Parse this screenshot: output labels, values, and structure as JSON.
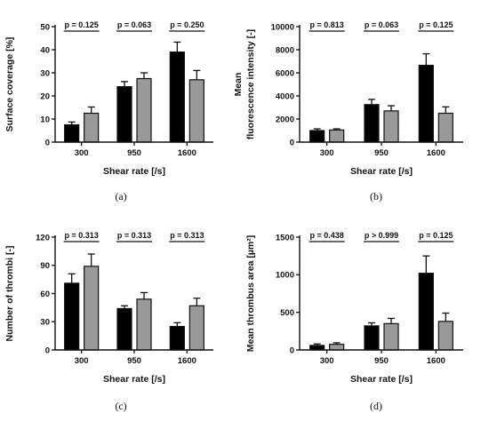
{
  "chart_data": [
    {
      "type": "bar",
      "panel": "(a)",
      "xlabel": "Shear rate [/s]",
      "ylabel": [
        "Surface coverage [%]"
      ],
      "categories": [
        "300",
        "950",
        "1600"
      ],
      "ylim": [
        0,
        50
      ],
      "yticks": [
        "0",
        "10",
        "20",
        "30",
        "40",
        "50"
      ],
      "series": [
        {
          "color": "#000000",
          "values": [
            7.5,
            24,
            39
          ],
          "errors": [
            1.2,
            2.2,
            4.3
          ]
        },
        {
          "color": "#999999",
          "values": [
            12.5,
            27.5,
            27
          ],
          "errors": [
            2.7,
            2.5,
            4
          ]
        }
      ],
      "p_values": [
        "p = 0.125",
        "p = 0.063",
        "p = 0.250"
      ]
    },
    {
      "type": "bar",
      "panel": "(b)",
      "xlabel": "Shear rate [/s]",
      "ylabel": [
        "Mean",
        "fluorescence intensity [-]"
      ],
      "categories": [
        "300",
        "950",
        "1600"
      ],
      "ylim": [
        0,
        10000
      ],
      "yticks": [
        "0",
        "2000",
        "4000",
        "6000",
        "8000",
        "10000"
      ],
      "series": [
        {
          "color": "#000000",
          "values": [
            1000,
            3250,
            6650
          ],
          "errors": [
            150,
            450,
            1000
          ]
        },
        {
          "color": "#999999",
          "values": [
            1050,
            2700,
            2500
          ],
          "errors": [
            100,
            450,
            550
          ]
        }
      ],
      "p_values": [
        "p = 0.813",
        "p = 0.063",
        "p = 0.125"
      ]
    },
    {
      "type": "bar",
      "panel": "(c)",
      "xlabel": "Shear rate [/s]",
      "ylabel": [
        "Number of thrombi [-]"
      ],
      "categories": [
        "300",
        "950",
        "1600"
      ],
      "ylim": [
        0,
        120
      ],
      "yticks": [
        "0",
        "30",
        "60",
        "90",
        "120"
      ],
      "series": [
        {
          "color": "#000000",
          "values": [
            71,
            44,
            25
          ],
          "errors": [
            10,
            3,
            4
          ]
        },
        {
          "color": "#999999",
          "values": [
            89,
            54,
            47
          ],
          "errors": [
            13,
            7,
            8
          ]
        }
      ],
      "p_values": [
        "p = 0.313",
        "p = 0.313",
        "p = 0.313"
      ]
    },
    {
      "type": "bar",
      "panel": "(d)",
      "xlabel": "Shear rate [/s]",
      "ylabel": [
        "Mean thrombus area [µm²]"
      ],
      "categories": [
        "300",
        "950",
        "1600"
      ],
      "ylim": [
        0,
        1500
      ],
      "yticks": [
        "0",
        "500",
        "1000",
        "1500"
      ],
      "series": [
        {
          "color": "#000000",
          "values": [
            60,
            320,
            1020
          ],
          "errors": [
            20,
            40,
            230
          ]
        },
        {
          "color": "#999999",
          "values": [
            75,
            350,
            380
          ],
          "errors": [
            20,
            70,
            110
          ]
        }
      ],
      "p_values": [
        "p = 0.438",
        "p > 0.999",
        "p = 0.125"
      ]
    }
  ]
}
